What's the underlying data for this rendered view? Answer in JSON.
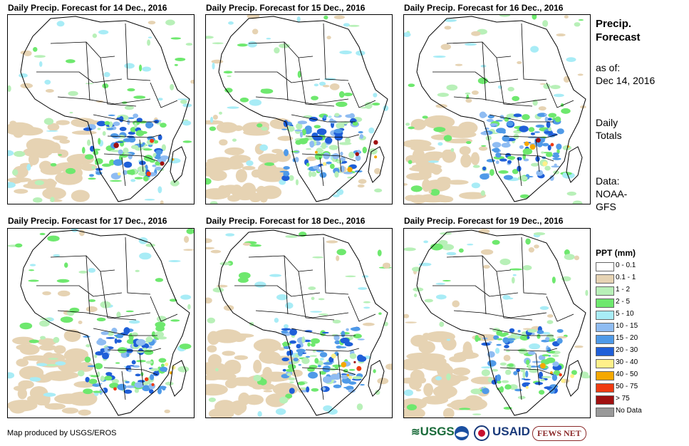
{
  "panels": [
    {
      "title": "Daily Precip. Forecast for 14 Dec., 2016"
    },
    {
      "title": "Daily Precip. Forecast for 15 Dec., 2016"
    },
    {
      "title": "Daily Precip. Forecast for 16 Dec., 2016"
    },
    {
      "title": "Daily Precip. Forecast for 17 Dec., 2016"
    },
    {
      "title": "Daily Precip. Forecast for 18 Dec., 2016"
    },
    {
      "title": "Daily Precip. Forecast for 19 Dec., 2016"
    }
  ],
  "sidebar": {
    "heading_line1": "Precip.",
    "heading_line2": "Forecast",
    "asof_line1": "as of:",
    "asof_line2": "Dec 14, 2016",
    "totals_line1": "Daily",
    "totals_line2": "Totals",
    "data_line1": "Data:",
    "data_line2": "NOAA-",
    "data_line3": "GFS"
  },
  "legend": {
    "title": "PPT (mm)",
    "items": [
      {
        "label": "0 - 0.1",
        "color": "#ffffff"
      },
      {
        "label": "0.1 - 1",
        "color": "#e6d3b3"
      },
      {
        "label": "1 - 2",
        "color": "#b8f0b8"
      },
      {
        "label": "2 - 5",
        "color": "#6ee86e"
      },
      {
        "label": "5 - 10",
        "color": "#a8ecf6"
      },
      {
        "label": "10 - 15",
        "color": "#8fbcf2"
      },
      {
        "label": "15 - 20",
        "color": "#4f9ae8"
      },
      {
        "label": "20 - 30",
        "color": "#1f5fd8"
      },
      {
        "label": "30 - 40",
        "color": "#fff08a"
      },
      {
        "label": "40 - 50",
        "color": "#f5a800"
      },
      {
        "label": "50 - 75",
        "color": "#ef3b12"
      },
      {
        "label": "> 75",
        "color": "#a01010"
      },
      {
        "label": "No Data",
        "color": "#999999"
      }
    ]
  },
  "footer": {
    "credit": "Map produced by USGS/EROS"
  },
  "logos": {
    "usgs": "USGS",
    "usaid": "USAID",
    "fews": "FEWS NET"
  }
}
